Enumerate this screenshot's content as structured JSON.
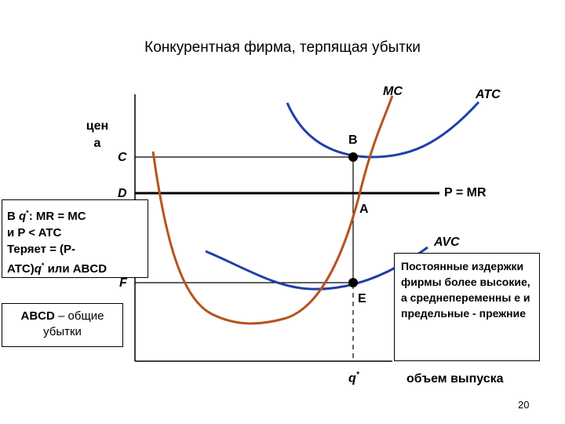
{
  "title": "Конкурентная фирма, терпящая убытки",
  "axes": {
    "y_label_line1": "цен",
    "y_label_line2": "а",
    "x_label": "объем выпуска",
    "q_label": "q",
    "q_sup": "*"
  },
  "curves": {
    "mc": "MC",
    "atc": "ATC",
    "avc": "AVC",
    "price_line": "P = MR"
  },
  "points": {
    "b": "B",
    "a": "A",
    "e": "E",
    "c": "C",
    "d": "D",
    "f": "F"
  },
  "box_rule": {
    "line1_pre": "В ",
    "line1_q": "q",
    "line1_sup": "*",
    "line1_post": ": MR = MC",
    "line2": "и P < ATC",
    "line3": "Теряет = (P-",
    "line4_pre": "ATC)",
    "line4_q": "q",
    "line4_sup": "*",
    "line4_post": " или ABCD"
  },
  "box_abcd": {
    "bold": "ABCD",
    "rest": " – общие убытки"
  },
  "box_note": "Постоянные издержки фирмы более высокие, а среднепеременны е и предельные - прежние",
  "page_number": "20",
  "colors": {
    "mc_curve": "#b5541f",
    "atc_curve": "#1f3fa8",
    "avc_curve": "#1f3fa8",
    "axis": "#000000"
  }
}
